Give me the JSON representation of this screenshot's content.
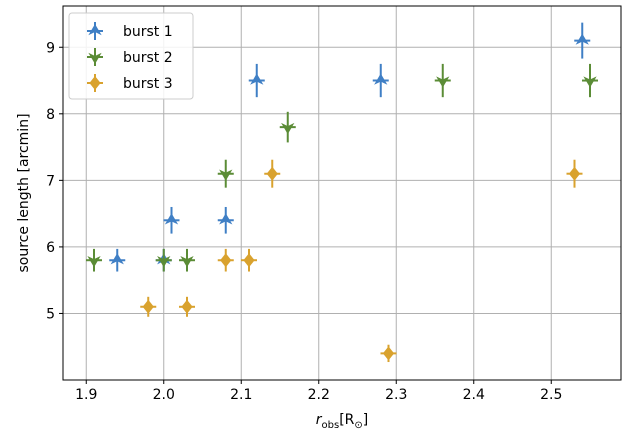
{
  "chart_data": {
    "type": "scatter",
    "xlabel": {
      "main": "r",
      "sub": "obs",
      "unit": "[R",
      "unit_sub": "⊙",
      "unit_end": "]"
    },
    "ylabel": "source length [arcmin]",
    "xlim": [
      1.87,
      2.59
    ],
    "ylim": [
      4.0,
      9.62
    ],
    "xticks": [
      "1.9",
      "2.0",
      "2.1",
      "2.2",
      "2.3",
      "2.4",
      "2.5"
    ],
    "yticks": [
      "5",
      "6",
      "7",
      "8",
      "9"
    ],
    "grid": true,
    "legend_position": "top-left",
    "series": [
      {
        "name": "burst 1",
        "color": "#3f7fc5",
        "marker": "triangle-up",
        "points": [
          {
            "x": 1.94,
            "y": 5.8,
            "err": 0.17
          },
          {
            "x": 2.0,
            "y": 5.8,
            "err": 0.17
          },
          {
            "x": 2.01,
            "y": 6.4,
            "err": 0.2
          },
          {
            "x": 2.08,
            "y": 6.4,
            "err": 0.2
          },
          {
            "x": 2.12,
            "y": 8.5,
            "err": 0.25
          },
          {
            "x": 2.28,
            "y": 8.5,
            "err": 0.25
          },
          {
            "x": 2.54,
            "y": 9.1,
            "err": 0.27
          }
        ]
      },
      {
        "name": "burst 2",
        "color": "#5b8c36",
        "marker": "triangle-down",
        "points": [
          {
            "x": 1.91,
            "y": 5.8,
            "err": 0.17
          },
          {
            "x": 2.0,
            "y": 5.8,
            "err": 0.17
          },
          {
            "x": 2.03,
            "y": 5.8,
            "err": 0.17
          },
          {
            "x": 2.08,
            "y": 7.1,
            "err": 0.21
          },
          {
            "x": 2.16,
            "y": 7.8,
            "err": 0.23
          },
          {
            "x": 2.36,
            "y": 8.5,
            "err": 0.25
          },
          {
            "x": 2.55,
            "y": 8.5,
            "err": 0.25
          }
        ]
      },
      {
        "name": "burst 3",
        "color": "#d9a22e",
        "marker": "diamond",
        "points": [
          {
            "x": 1.98,
            "y": 5.1,
            "err": 0.15
          },
          {
            "x": 2.03,
            "y": 5.1,
            "err": 0.15
          },
          {
            "x": 2.08,
            "y": 5.8,
            "err": 0.17
          },
          {
            "x": 2.11,
            "y": 5.8,
            "err": 0.17
          },
          {
            "x": 2.14,
            "y": 7.1,
            "err": 0.21
          },
          {
            "x": 2.29,
            "y": 4.4,
            "err": 0.13
          },
          {
            "x": 2.53,
            "y": 7.1,
            "err": 0.21
          }
        ]
      }
    ]
  }
}
